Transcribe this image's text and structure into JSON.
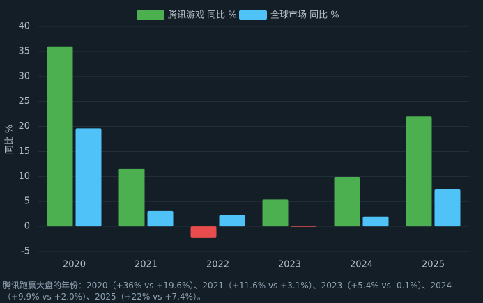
{
  "chart_data": {
    "type": "bar",
    "categories": [
      "2020",
      "2021",
      "2022",
      "2023",
      "2024",
      "2025"
    ],
    "series": [
      {
        "name": "腾讯游戏 同比 %",
        "color": "#4caf50",
        "values": [
          36,
          11.6,
          -2.2,
          5.4,
          9.9,
          22
        ]
      },
      {
        "name": "全球市场 同比 %",
        "color": "#4fc3f7",
        "values": [
          19.6,
          3.1,
          2.3,
          -0.1,
          2.0,
          7.4
        ]
      }
    ],
    "negative_color": "#e84c4c",
    "y_label": "同比 %",
    "ylim": [
      -5,
      40
    ],
    "yticks": [
      -5,
      0,
      5,
      10,
      15,
      20,
      25,
      30,
      35,
      40
    ],
    "grid": true,
    "annotation": "腾讯跑赢大盘的年份：2020（+36% vs +19.6%）、2021（+11.6% vs +3.1%）、2023（+5.4% vs -0.1%）、2024（+9.9% vs +2.0%）、2025（+22% vs +7.4%）。"
  }
}
